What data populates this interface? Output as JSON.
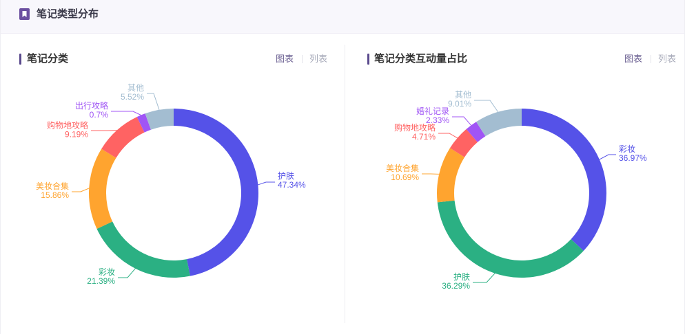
{
  "header": {
    "title": "笔记类型分布",
    "icon": "bookmark-icon"
  },
  "theme": {
    "header_bg": "#f8f7fc",
    "accent": "#5a4a8d",
    "icon_color": "#6b4fa0",
    "tab_active": "#6e6394",
    "tab_inactive": "#a9acbb"
  },
  "panels": [
    {
      "tabs": [
        {
          "label": "图表",
          "active": true
        },
        {
          "label": "列表",
          "active": false
        }
      ]
    },
    {
      "tabs": [
        {
          "label": "图表",
          "active": true
        },
        {
          "label": "列表",
          "active": false
        }
      ]
    }
  ],
  "chart_data": [
    {
      "type": "pie",
      "donut": true,
      "title": "笔记分类",
      "categories": [
        "护肤",
        "彩妆",
        "美妆合集",
        "购物地攻略",
        "出行攻略",
        "其他"
      ],
      "values": [
        47.34,
        21.39,
        15.86,
        9.19,
        0.7,
        5.52
      ],
      "colors": [
        "#5552E8",
        "#2BB083",
        "#FFA42F",
        "#FF6363",
        "#A055F5",
        "#A3BDD1"
      ]
    },
    {
      "type": "pie",
      "donut": true,
      "title": "笔记分类互动量占比",
      "categories": [
        "彩妆",
        "护肤",
        "美妆合集",
        "购物地攻略",
        "婚礼记录",
        "其他"
      ],
      "values": [
        36.97,
        36.29,
        10.69,
        4.71,
        2.33,
        9.01
      ],
      "colors": [
        "#5552E8",
        "#2BB083",
        "#FFA42F",
        "#FF6363",
        "#A055F5",
        "#A3BDD1"
      ]
    }
  ]
}
